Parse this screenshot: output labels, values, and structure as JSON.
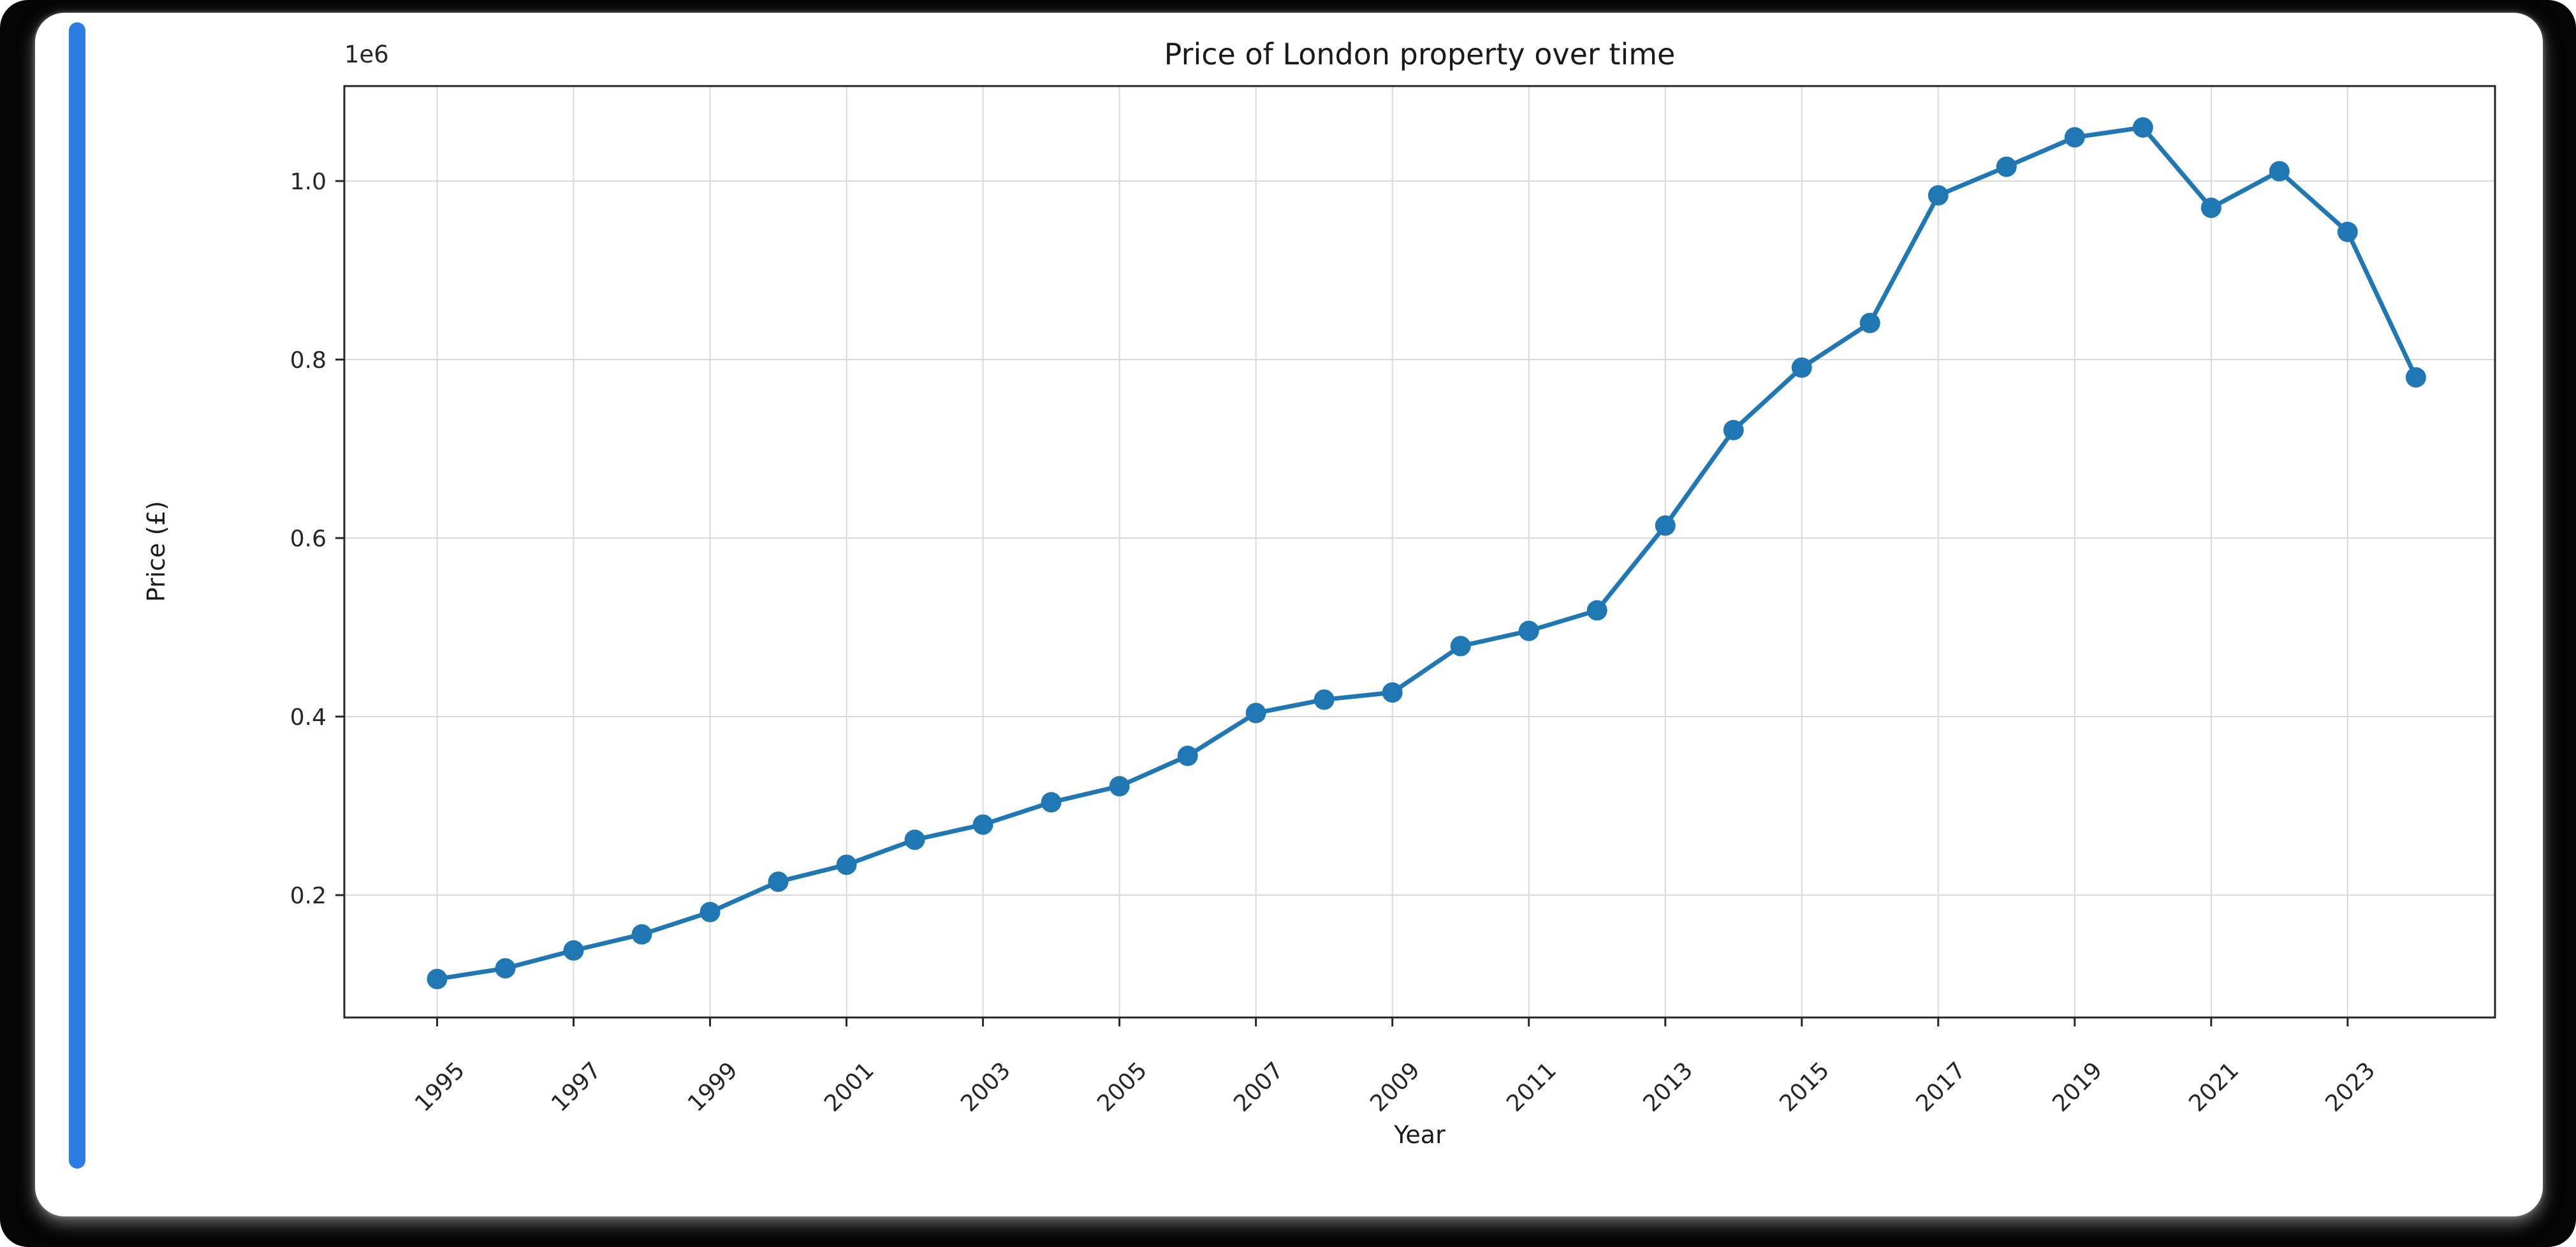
{
  "window": {
    "background_color": "#050505",
    "card_color": "#ffffff",
    "scrollbar_color": "#2b7de2"
  },
  "chart_data": {
    "type": "line",
    "title": "Price of London property over time",
    "xlabel": "Year",
    "ylabel": "Price (£)",
    "offset_text": "1e6",
    "grid": true,
    "legend_position": "none",
    "line_color": "#1f77b4",
    "marker": "o",
    "grid_color": "#d9d9d9",
    "spine_color": "#262626",
    "text_color": "#262626",
    "xlim": [
      1993.64,
      2025.16
    ],
    "ylim": [
      62900,
      1106400
    ],
    "x_ticks": [
      1995,
      1997,
      1999,
      2001,
      2003,
      2005,
      2007,
      2009,
      2011,
      2013,
      2015,
      2017,
      2019,
      2021,
      2023
    ],
    "y_ticks": [
      200000,
      400000,
      600000,
      800000,
      1000000
    ],
    "y_tick_labels": [
      "0.2",
      "0.4",
      "0.6",
      "0.8",
      "1.0"
    ],
    "x": [
      1995,
      1996,
      1997,
      1998,
      1999,
      2000,
      2001,
      2002,
      2003,
      2004,
      2005,
      2006,
      2007,
      2008,
      2009,
      2010,
      2011,
      2012,
      2013,
      2014,
      2015,
      2016,
      2017,
      2018,
      2019,
      2020,
      2021,
      2022,
      2023,
      2024
    ],
    "y": [
      106000,
      118000,
      138000,
      156000,
      181000,
      215000,
      234000,
      262000,
      279000,
      304000,
      322000,
      356000,
      404000,
      419000,
      427000,
      479000,
      496000,
      519000,
      614000,
      721000,
      791000,
      841000,
      984000,
      1016000,
      1049000,
      1060000,
      970000,
      1011000,
      943000,
      780000
    ]
  }
}
